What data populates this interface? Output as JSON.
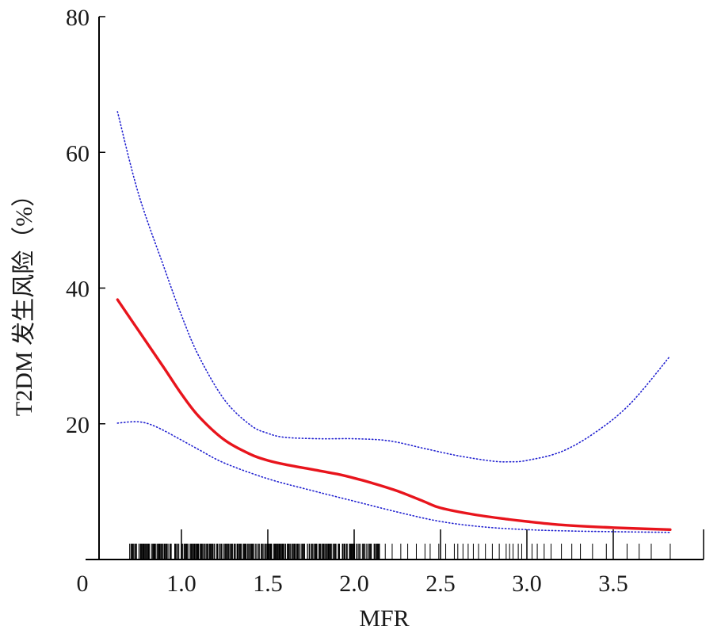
{
  "chart_data": {
    "type": "line",
    "title": "",
    "xlabel": "MFR",
    "ylabel": "T2DM 发生风险（%）",
    "xlim": [
      0.5,
      4.0
    ],
    "ylim": [
      0,
      80
    ],
    "origin_label": "0",
    "x_ticks": [
      {
        "value": 1.0,
        "label": "1.0"
      },
      {
        "value": 1.5,
        "label": "1.5"
      },
      {
        "value": 2.0,
        "label": "2.0"
      },
      {
        "value": 2.5,
        "label": "2.5"
      },
      {
        "value": 3.0,
        "label": "3.0"
      },
      {
        "value": 3.5,
        "label": "3.5"
      }
    ],
    "y_ticks": [
      {
        "value": 20,
        "label": "20"
      },
      {
        "value": 40,
        "label": "40"
      },
      {
        "value": 60,
        "label": "60"
      },
      {
        "value": 80,
        "label": "80"
      }
    ],
    "series": [
      {
        "role": "estimate",
        "style": "solid",
        "color": "#e8141c",
        "x": [
          0.63,
          0.75,
          0.9,
          1.0,
          1.1,
          1.25,
          1.4,
          1.5,
          1.6,
          1.75,
          1.9,
          2.0,
          2.1,
          2.25,
          2.4,
          2.5,
          2.7,
          2.9,
          3.0,
          3.2,
          3.5,
          3.83
        ],
        "y": [
          38.3,
          33.8,
          28.2,
          24.4,
          21.1,
          17.6,
          15.5,
          14.6,
          14.0,
          13.3,
          12.6,
          12.0,
          11.3,
          10.1,
          8.6,
          7.6,
          6.6,
          5.9,
          5.6,
          5.1,
          4.7,
          4.4
        ]
      },
      {
        "role": "upper-ci",
        "style": "dotted",
        "color": "#2020d0",
        "x": [
          0.63,
          0.75,
          0.9,
          1.0,
          1.1,
          1.25,
          1.4,
          1.5,
          1.6,
          1.8,
          2.0,
          2.2,
          2.4,
          2.6,
          2.8,
          2.9,
          3.0,
          3.2,
          3.4,
          3.6,
          3.83
        ],
        "y": [
          66,
          54,
          43,
          36,
          30,
          23.5,
          19.8,
          18.6,
          18.0,
          17.8,
          17.8,
          17.5,
          16.4,
          15.3,
          14.5,
          14.4,
          14.6,
          15.9,
          18.8,
          23.0,
          30.0
        ]
      },
      {
        "role": "lower-ci",
        "style": "dotted",
        "color": "#2020d0",
        "x": [
          0.63,
          0.75,
          0.85,
          1.0,
          1.1,
          1.25,
          1.5,
          1.75,
          2.0,
          2.25,
          2.5,
          2.75,
          3.0,
          3.25,
          3.5,
          3.83
        ],
        "y": [
          20.1,
          20.3,
          19.6,
          17.6,
          16.2,
          14.2,
          11.9,
          10.2,
          8.6,
          7.0,
          5.6,
          4.8,
          4.4,
          4.2,
          4.1,
          4.0
        ]
      }
    ],
    "rug": {
      "color": "#000000",
      "dense_min": 0.7,
      "dense_max": 2.15,
      "sparse_values": [
        2.18,
        2.22,
        2.27,
        2.31,
        2.36,
        2.41,
        2.44,
        2.49,
        2.53,
        2.58,
        2.6,
        2.63,
        2.66,
        2.69,
        2.72,
        2.76,
        2.8,
        2.84,
        2.88,
        2.9,
        2.92,
        2.95,
        2.97,
        3.0,
        3.03,
        3.06,
        3.1,
        3.14,
        3.2,
        3.26,
        3.31,
        3.38,
        3.46,
        3.58,
        3.65,
        3.72,
        3.83
      ]
    }
  }
}
